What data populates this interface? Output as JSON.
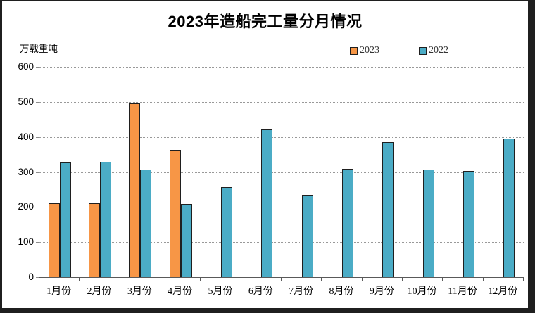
{
  "frame": {
    "border_color": "#1f1f1f",
    "background": "#ffffff"
  },
  "chart_data": {
    "type": "bar",
    "title": "2023年造船完工量分月情况",
    "unit_label": "万载重吨",
    "categories": [
      "1月份",
      "2月份",
      "3月份",
      "4月份",
      "5月份",
      "6月份",
      "7月份",
      "8月份",
      "9月份",
      "10月份",
      "11月份",
      "12月份"
    ],
    "series": [
      {
        "name": "2023",
        "color": "#F79646",
        "values": [
          211,
          211,
          495,
          363,
          null,
          null,
          null,
          null,
          null,
          null,
          null,
          null
        ]
      },
      {
        "name": "2022",
        "color": "#4BACC6",
        "values": [
          327,
          329,
          308,
          209,
          256,
          421,
          235,
          309,
          385,
          308,
          304,
          395
        ]
      }
    ],
    "ylim": [
      0,
      600
    ],
    "yticks": [
      0,
      100,
      200,
      300,
      400,
      500,
      600
    ],
    "grid": "horizontal-dotted",
    "legend_position": "top-right",
    "xlabel": "",
    "ylabel": "万载重吨"
  }
}
